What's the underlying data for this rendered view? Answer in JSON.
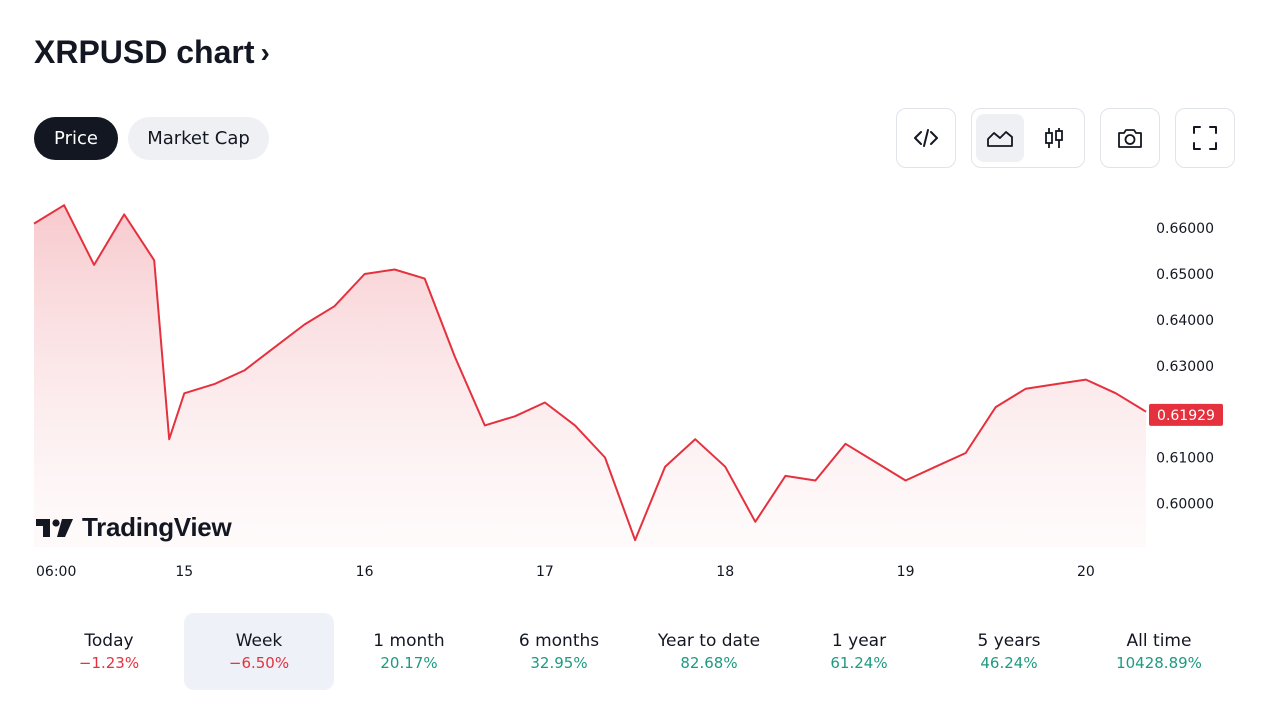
{
  "header": {
    "title": "XRPUSD chart",
    "chevron": "›"
  },
  "tabs": [
    {
      "label": "Price",
      "active": true
    },
    {
      "label": "Market Cap",
      "active": false
    }
  ],
  "toolbar": {
    "embed_icon": "code-icon",
    "area_icon": "area-chart-icon",
    "candles_icon": "candlestick-icon",
    "snapshot_icon": "camera-icon",
    "fullscreen_icon": "fullscreen-icon"
  },
  "colors": {
    "line": "#e5313e",
    "fill_top": "#f7c9cd",
    "negative": "#e5313e",
    "positive": "#1d9a80",
    "dark": "#131722",
    "active_bg": "#eef1f8"
  },
  "branding": {
    "logo_text": "TradingView"
  },
  "chart_data": {
    "type": "area",
    "series": [
      {
        "x": [
          "14 04:00",
          "14 08:00",
          "14 12:00",
          "14 16:00",
          "14 20:00",
          "14 22:00",
          "15 00:00",
          "15 04:00",
          "15 08:00",
          "15 12:00",
          "15 16:00",
          "15 20:00",
          "16 00:00",
          "16 04:00",
          "16 08:00",
          "16 12:00",
          "16 16:00",
          "16 20:00",
          "17 00:00",
          "17 04:00",
          "17 08:00",
          "17 12:00",
          "17 16:00",
          "17 20:00",
          "18 00:00",
          "18 04:00",
          "18 08:00",
          "18 12:00",
          "18 16:00",
          "18 20:00",
          "19 00:00",
          "19 04:00",
          "19 08:00",
          "19 12:00",
          "19 16:00",
          "19 20:00",
          "20 00:00",
          "20 04:00",
          "20 08:00"
        ],
        "values": [
          0.661,
          0.665,
          0.652,
          0.663,
          0.653,
          0.614,
          0.624,
          0.626,
          0.629,
          0.634,
          0.639,
          0.643,
          0.65,
          0.651,
          0.649,
          0.632,
          0.617,
          0.619,
          0.622,
          0.617,
          0.61,
          0.592,
          0.608,
          0.614,
          0.608,
          0.596,
          0.606,
          0.605,
          0.613,
          0.609,
          0.605,
          0.608,
          0.611,
          0.621,
          0.625,
          0.626,
          0.627,
          0.624,
          0.62
        ]
      }
    ],
    "last_value": "0.61929",
    "y_ticks": [
      "0.66000",
      "0.65000",
      "0.64000",
      "0.63000",
      "0.61000",
      "0.60000"
    ],
    "x_ticks": [
      "06:00",
      "15",
      "16",
      "17",
      "18",
      "19",
      "20"
    ],
    "ylim": [
      0.5905,
      0.6705
    ],
    "grid": false,
    "title": "",
    "xlabel": "",
    "ylabel": ""
  },
  "periods": [
    {
      "label": "Today",
      "change": "−1.23%",
      "direction": "down",
      "active": false
    },
    {
      "label": "Week",
      "change": "−6.50%",
      "direction": "down",
      "active": true
    },
    {
      "label": "1 month",
      "change": "20.17%",
      "direction": "up",
      "active": false
    },
    {
      "label": "6 months",
      "change": "32.95%",
      "direction": "up",
      "active": false
    },
    {
      "label": "Year to date",
      "change": "82.68%",
      "direction": "up",
      "active": false
    },
    {
      "label": "1 year",
      "change": "61.24%",
      "direction": "up",
      "active": false
    },
    {
      "label": "5 years",
      "change": "46.24%",
      "direction": "up",
      "active": false
    },
    {
      "label": "All time",
      "change": "10428.89%",
      "direction": "up",
      "active": false
    }
  ]
}
